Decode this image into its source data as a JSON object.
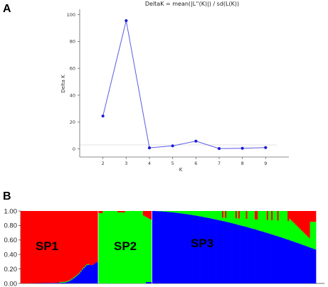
{
  "panels": {
    "a": "A",
    "b": "B"
  },
  "chart_data": [
    {
      "type": "line",
      "title": "DeltaK = mean(|L''(K)|) / sd(L(K))",
      "xlabel": "K",
      "ylabel": "Delta K",
      "x": [
        2,
        3,
        4,
        5,
        6,
        7,
        8,
        9
      ],
      "y": [
        24.5,
        95.5,
        0.8,
        2.3,
        5.8,
        0.3,
        0.5,
        1.0
      ],
      "xlim": [
        1,
        10
      ],
      "ylim": [
        -6,
        104
      ],
      "xticks": [
        "2",
        "3",
        "4",
        "5",
        "6",
        "7",
        "8",
        "9"
      ],
      "yticks": [
        "0",
        "20",
        "40",
        "60",
        "80",
        "100"
      ],
      "ytick_values": [
        0,
        20,
        40,
        60,
        80,
        100
      ],
      "grid": false,
      "line_color": "#5a5ae6",
      "marker_color": "#1c1cd6"
    },
    {
      "type": "bar",
      "stacked": true,
      "ylim": [
        0,
        1
      ],
      "yticks": [
        "0.00",
        "0.20",
        "0.40",
        "0.60",
        "0.80",
        "1.00"
      ],
      "ytick_values": [
        0,
        0.2,
        0.4,
        0.6,
        0.8,
        1.0
      ],
      "clusters": [
        "SP1",
        "SP2",
        "SP3"
      ],
      "series": [
        {
          "name": "SP1",
          "color": "#ff0000"
        },
        {
          "name": "SP2",
          "color": "#00ff00"
        },
        {
          "name": "SP3",
          "color": "#0000ff"
        }
      ],
      "groups": [
        {
          "n": 52,
          "bottom_shape": [
            [
              0,
              0
            ],
            [
              0.57,
              0.01
            ],
            [
              0.63,
              0.03
            ],
            [
              0.7,
              0.08
            ],
            [
              0.76,
              0.13
            ],
            [
              0.81,
              0.2
            ],
            [
              0.87,
              0.26
            ],
            [
              0.93,
              0.25
            ],
            [
              1.0,
              0.3
            ]
          ]
        },
        {
          "n": 36
        },
        {
          "n": 110,
          "red_bar": 0.98,
          "green_bar": 0.93,
          "red_mix": 0.94,
          "blue_end": 0.47
        }
      ]
    }
  ]
}
